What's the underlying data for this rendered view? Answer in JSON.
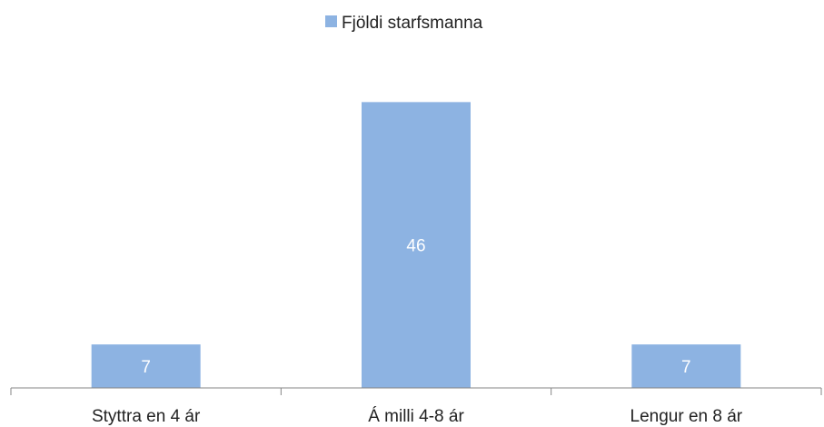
{
  "chart_data": {
    "type": "bar",
    "categories": [
      "Styttra en 4 ár",
      "Á milli 4-8 ár",
      "Lengur en 8 ár"
    ],
    "series": [
      {
        "name": "Fjöldi starfsmanna",
        "values": [
          7,
          46,
          7
        ],
        "color": "#8DB3E2"
      }
    ],
    "ylim": [
      0,
      50
    ],
    "grid": false,
    "legend_position": "top",
    "data_labels": true,
    "axis_color": "#868686"
  }
}
